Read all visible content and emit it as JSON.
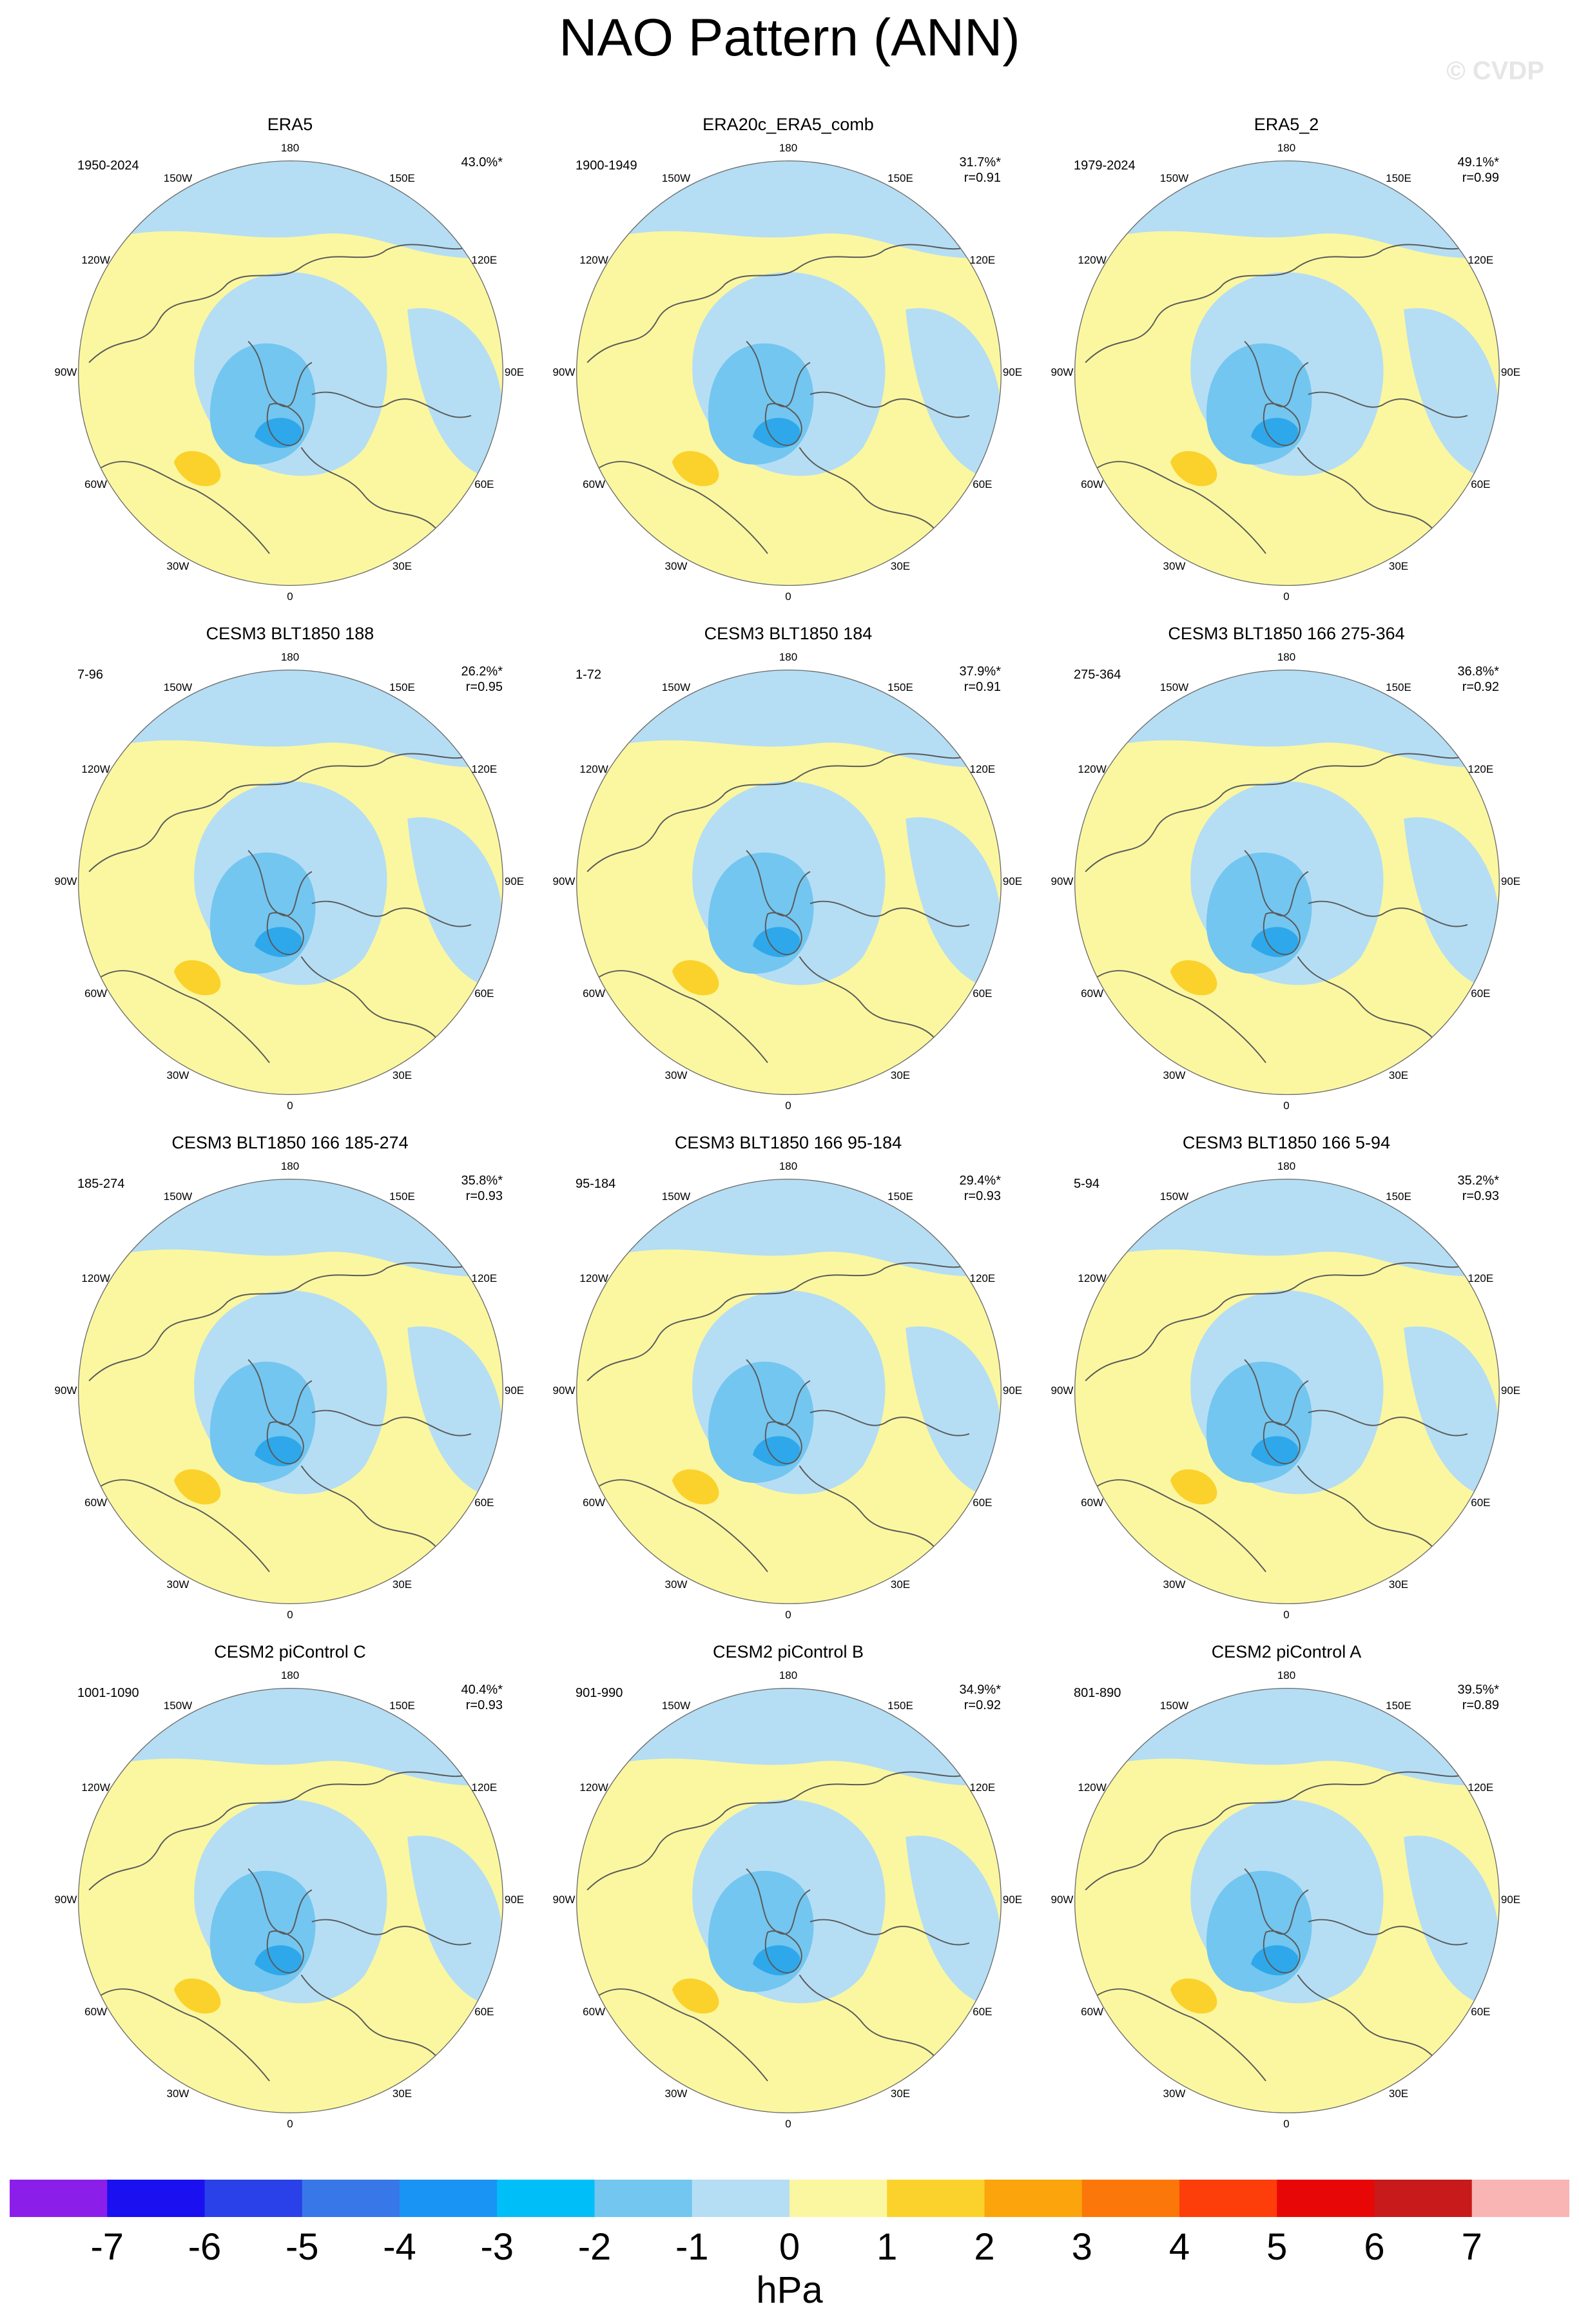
{
  "title": "NAO Pattern (ANN)",
  "watermark": "© CVDP",
  "colors": {
    "ocean_background": "#fbf7a0",
    "negative_weak": "#b5def4",
    "negative_moderate": "#73c6f0",
    "negative_strong": "#2ea8ea",
    "positive_moderate": "#fbd22c",
    "coastline": "#5a5a5a"
  },
  "longitude_labels": [
    "180",
    "150E",
    "120E",
    "90E",
    "60E",
    "30E",
    "0",
    "30W",
    "60W",
    "90W",
    "120W",
    "150W"
  ],
  "panels": [
    {
      "title": "ERA5",
      "years": "1950-2024",
      "pct": "43.0%*",
      "r": ""
    },
    {
      "title": "ERA20c_ERA5_comb",
      "years": "1900-1949",
      "pct": "31.7%*",
      "r": "r=0.91"
    },
    {
      "title": "ERA5_2",
      "years": "1979-2024",
      "pct": "49.1%*",
      "r": "r=0.99"
    },
    {
      "title": "CESM3 BLT1850 188",
      "years": "7-96",
      "pct": "26.2%*",
      "r": "r=0.95"
    },
    {
      "title": "CESM3 BLT1850 184",
      "years": "1-72",
      "pct": "37.9%*",
      "r": "r=0.91"
    },
    {
      "title": "CESM3 BLT1850 166 275-364",
      "years": "275-364",
      "pct": "36.8%*",
      "r": "r=0.92"
    },
    {
      "title": "CESM3 BLT1850 166 185-274",
      "years": "185-274",
      "pct": "35.8%*",
      "r": "r=0.93"
    },
    {
      "title": "CESM3 BLT1850 166 95-184",
      "years": "95-184",
      "pct": "29.4%*",
      "r": "r=0.93"
    },
    {
      "title": "CESM3 BLT1850 166 5-94",
      "years": "5-94",
      "pct": "35.2%*",
      "r": "r=0.93"
    },
    {
      "title": "CESM2 piControl C",
      "years": "1001-1090",
      "pct": "40.4%*",
      "r": "r=0.93"
    },
    {
      "title": "CESM2 piControl B",
      "years": "901-990",
      "pct": "34.9%*",
      "r": "r=0.92"
    },
    {
      "title": "CESM2 piControl A",
      "years": "801-890",
      "pct": "39.5%*",
      "r": "r=0.89"
    }
  ],
  "colorbar": {
    "units": "hPa",
    "ticks": [
      "-7",
      "-6",
      "-5",
      "-4",
      "-3",
      "-2",
      "-1",
      "0",
      "1",
      "2",
      "3",
      "4",
      "5",
      "6",
      "7"
    ],
    "colors": [
      "#8b1fe9",
      "#1a10f0",
      "#2a40e8",
      "#3877e8",
      "#1a94f4",
      "#00bff8",
      "#73c6f0",
      "#b5def4",
      "#fbf7a0",
      "#fbd22c",
      "#fca40c",
      "#fc770a",
      "#fd3d0a",
      "#e80707",
      "#c81a1a",
      "#f9b4b4"
    ]
  }
}
